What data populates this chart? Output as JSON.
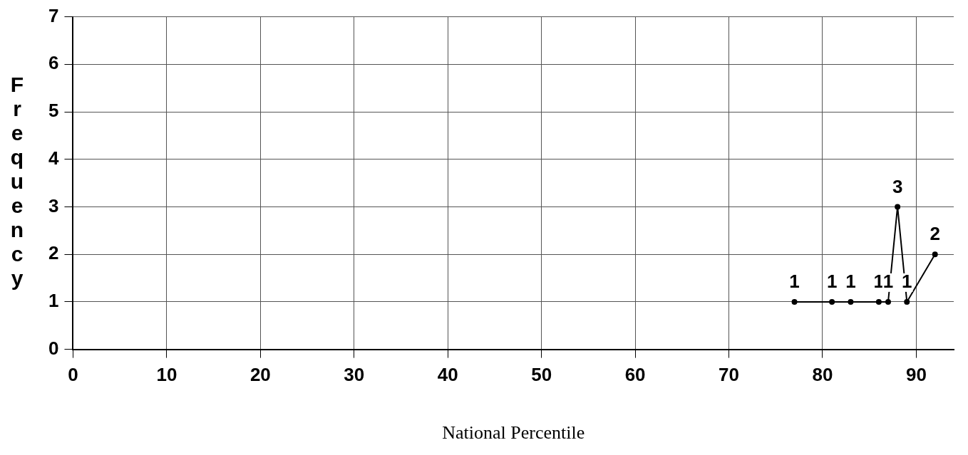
{
  "chart_data": {
    "type": "line",
    "xlabel": "National Percentile",
    "ylabel": "Frequency",
    "x": [
      77,
      81,
      83,
      86,
      87,
      88,
      89,
      92
    ],
    "values": [
      1,
      1,
      1,
      1,
      1,
      3,
      1,
      2
    ],
    "color": "#000000",
    "xlim": [
      0,
      94
    ],
    "xticks": [
      0,
      10,
      20,
      30,
      40,
      50,
      60,
      70,
      80,
      90
    ],
    "ylim": [
      0,
      7
    ],
    "yticks": [
      0,
      1,
      2,
      3,
      4,
      5,
      6,
      7
    ],
    "grid": true,
    "marker": "circle",
    "data_labels": true
  }
}
